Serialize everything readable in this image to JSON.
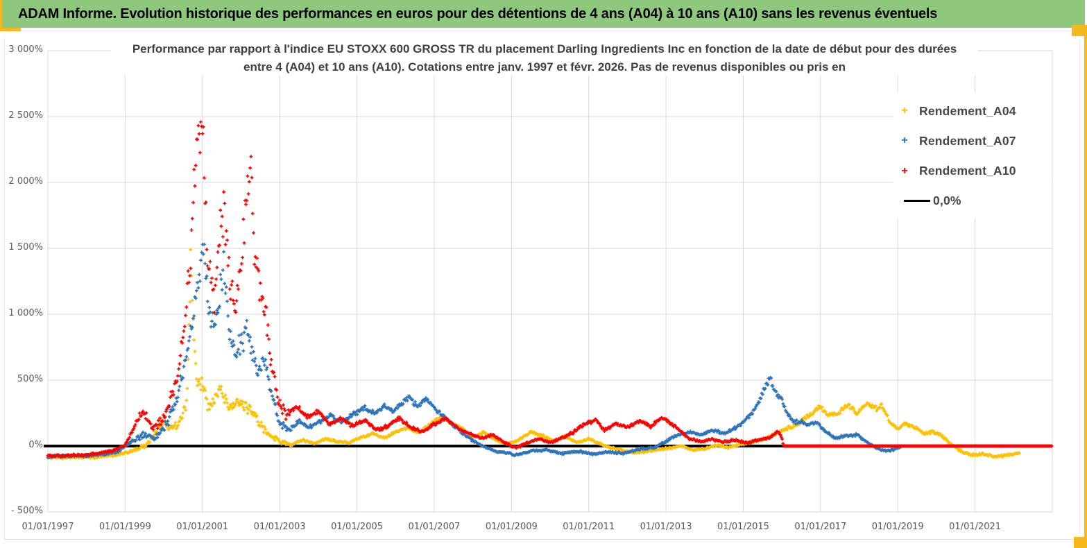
{
  "header": {
    "title": "ADAM Informe. Evolution historique des performances en euros pour des détentions de 4 ans (A04) à 10 ans (A10) sans les revenus éventuels",
    "bg_color": "#8EC87D",
    "accent_color": "#F5B91E"
  },
  "chart_data": {
    "type": "scatter",
    "title_line1": "Performance par rapport à l'indice EU STOXX 600 GROSS TR  du placement Darling Ingredients Inc en fonction de la date de début pour des durées",
    "title_line2": "entre 4 (A04) et 10 ans (A10).  Cotations entre janv. 1997 et févr. 2026. Pas de revenus disponibles ou pris en",
    "grid": true,
    "grid_color": "#D9D9D9",
    "legend_position": "upper-right",
    "x_axis": {
      "start_year": 1997,
      "end_year": 2023,
      "tick_interval_years": 2,
      "tick_labels": [
        "01/01/1997",
        "01/01/1999",
        "01/01/2001",
        "01/01/2003",
        "01/01/2005",
        "01/01/2007",
        "01/01/2009",
        "01/01/2011",
        "01/01/2013",
        "01/01/2015",
        "01/01/2017",
        "01/01/2019",
        "01/01/2021"
      ]
    },
    "y_axis": {
      "min": -500,
      "max": 3000,
      "step": 500,
      "unit": "%",
      "tick_labels": [
        "3 000%",
        "2 500%",
        "2 000%",
        "1 500%",
        "1 000%",
        "500%",
        "0%",
        "- 500%"
      ]
    },
    "zero_line": {
      "label": "0,0%",
      "value": 0,
      "color": "#000000"
    },
    "legend": [
      {
        "label": "Rendement_A04",
        "color": "#FFC000",
        "marker": "plus"
      },
      {
        "label": "Rendement_A07",
        "color": "#2D74BC",
        "marker": "plus"
      },
      {
        "label": "Rendement_A10",
        "color": "#FF0000",
        "marker": "plus"
      },
      {
        "label": "0,0%",
        "color": "#000000",
        "marker": "line"
      }
    ],
    "series": [
      {
        "name": "Rendement_A04",
        "color": "#FFC000",
        "points": [
          [
            1997.0,
            -85
          ],
          [
            1997.6,
            -86
          ],
          [
            1998.2,
            -84
          ],
          [
            1998.7,
            -72
          ],
          [
            1999.1,
            -45
          ],
          [
            1999.5,
            -5
          ],
          [
            1999.8,
            95
          ],
          [
            2000.0,
            200
          ],
          [
            2000.2,
            130
          ],
          [
            2000.45,
            195
          ],
          [
            2000.6,
            330
          ],
          [
            2000.7,
            1430
          ],
          [
            2000.78,
            900
          ],
          [
            2000.85,
            520
          ],
          [
            2001.0,
            460
          ],
          [
            2001.15,
            300
          ],
          [
            2001.3,
            360
          ],
          [
            2001.5,
            420
          ],
          [
            2001.7,
            280
          ],
          [
            2001.9,
            330
          ],
          [
            2002.1,
            300
          ],
          [
            2002.3,
            270
          ],
          [
            2002.5,
            160
          ],
          [
            2002.75,
            85
          ],
          [
            2003.0,
            30
          ],
          [
            2003.3,
            10
          ],
          [
            2003.6,
            45
          ],
          [
            2003.9,
            20
          ],
          [
            2004.2,
            55
          ],
          [
            2004.5,
            35
          ],
          [
            2004.8,
            25
          ],
          [
            2005.1,
            65
          ],
          [
            2005.4,
            95
          ],
          [
            2005.7,
            60
          ],
          [
            2006.0,
            105
          ],
          [
            2006.3,
            140
          ],
          [
            2006.6,
            100
          ],
          [
            2006.9,
            160
          ],
          [
            2007.2,
            230
          ],
          [
            2007.45,
            170
          ],
          [
            2007.7,
            140
          ],
          [
            2008.0,
            65
          ],
          [
            2008.3,
            105
          ],
          [
            2008.6,
            45
          ],
          [
            2008.9,
            15
          ],
          [
            2009.2,
            50
          ],
          [
            2009.5,
            105
          ],
          [
            2009.8,
            80
          ],
          [
            2010.1,
            35
          ],
          [
            2010.4,
            75
          ],
          [
            2010.7,
            25
          ],
          [
            2011.0,
            55
          ],
          [
            2011.3,
            15
          ],
          [
            2011.6,
            -15
          ],
          [
            2011.9,
            -35
          ],
          [
            2012.2,
            -50
          ],
          [
            2012.5,
            -40
          ],
          [
            2012.8,
            -25
          ],
          [
            2013.1,
            -15
          ],
          [
            2013.4,
            0
          ],
          [
            2013.7,
            -30
          ],
          [
            2014.0,
            -20
          ],
          [
            2014.3,
            5
          ],
          [
            2014.6,
            -10
          ],
          [
            2014.9,
            10
          ],
          [
            2015.2,
            30
          ],
          [
            2015.5,
            45
          ],
          [
            2015.8,
            90
          ],
          [
            2016.1,
            130
          ],
          [
            2016.4,
            160
          ],
          [
            2016.7,
            240
          ],
          [
            2017.0,
            295
          ],
          [
            2017.2,
            230
          ],
          [
            2017.45,
            250
          ],
          [
            2017.7,
            310
          ],
          [
            2017.95,
            250
          ],
          [
            2018.2,
            320
          ],
          [
            2018.45,
            285
          ],
          [
            2018.6,
            310
          ],
          [
            2018.8,
            180
          ],
          [
            2019.0,
            125
          ],
          [
            2019.2,
            170
          ],
          [
            2019.45,
            140
          ],
          [
            2019.7,
            95
          ],
          [
            2019.9,
            105
          ],
          [
            2020.1,
            85
          ],
          [
            2020.35,
            25
          ],
          [
            2020.6,
            -35
          ],
          [
            2020.9,
            -70
          ],
          [
            2021.2,
            -60
          ],
          [
            2021.5,
            -80
          ],
          [
            2021.8,
            -70
          ],
          [
            2022.0,
            -60
          ],
          [
            2022.15,
            -50
          ]
        ]
      },
      {
        "name": "Rendement_A07",
        "color": "#2D74BC",
        "points": [
          [
            1997.0,
            -80
          ],
          [
            1997.6,
            -76
          ],
          [
            1998.2,
            -70
          ],
          [
            1998.8,
            -45
          ],
          [
            1999.2,
            40
          ],
          [
            1999.5,
            90
          ],
          [
            1999.8,
            60
          ],
          [
            2000.1,
            180
          ],
          [
            2000.4,
            420
          ],
          [
            2000.6,
            700
          ],
          [
            2000.8,
            1050
          ],
          [
            2000.95,
            1350
          ],
          [
            2001.05,
            1510
          ],
          [
            2001.15,
            1050
          ],
          [
            2001.3,
            880
          ],
          [
            2001.45,
            1180
          ],
          [
            2001.55,
            1370
          ],
          [
            2001.7,
            900
          ],
          [
            2001.85,
            680
          ],
          [
            2002.0,
            800
          ],
          [
            2002.2,
            860
          ],
          [
            2002.4,
            560
          ],
          [
            2002.6,
            660
          ],
          [
            2002.8,
            380
          ],
          [
            2003.0,
            170
          ],
          [
            2003.25,
            120
          ],
          [
            2003.5,
            190
          ],
          [
            2003.75,
            140
          ],
          [
            2004.0,
            175
          ],
          [
            2004.3,
            235
          ],
          [
            2004.6,
            180
          ],
          [
            2004.9,
            240
          ],
          [
            2005.2,
            290
          ],
          [
            2005.45,
            250
          ],
          [
            2005.7,
            305
          ],
          [
            2005.95,
            265
          ],
          [
            2006.2,
            330
          ],
          [
            2006.35,
            375
          ],
          [
            2006.55,
            300
          ],
          [
            2006.8,
            365
          ],
          [
            2007.0,
            290
          ],
          [
            2007.3,
            210
          ],
          [
            2007.6,
            130
          ],
          [
            2007.9,
            60
          ],
          [
            2008.2,
            5
          ],
          [
            2008.5,
            -30
          ],
          [
            2008.8,
            -50
          ],
          [
            2009.1,
            -65
          ],
          [
            2009.5,
            -40
          ],
          [
            2009.9,
            -30
          ],
          [
            2010.3,
            -55
          ],
          [
            2010.7,
            -40
          ],
          [
            2011.1,
            -60
          ],
          [
            2011.5,
            -45
          ],
          [
            2011.9,
            -55
          ],
          [
            2012.3,
            -25
          ],
          [
            2012.7,
            -10
          ],
          [
            2013.0,
            35
          ],
          [
            2013.3,
            85
          ],
          [
            2013.6,
            105
          ],
          [
            2013.9,
            85
          ],
          [
            2014.2,
            120
          ],
          [
            2014.5,
            95
          ],
          [
            2014.8,
            135
          ],
          [
            2015.1,
            210
          ],
          [
            2015.35,
            300
          ],
          [
            2015.55,
            430
          ],
          [
            2015.7,
            520
          ],
          [
            2015.8,
            420
          ],
          [
            2015.95,
            380
          ],
          [
            2016.1,
            265
          ],
          [
            2016.3,
            180
          ],
          [
            2016.5,
            185
          ],
          [
            2016.7,
            160
          ],
          [
            2016.9,
            185
          ],
          [
            2017.1,
            115
          ],
          [
            2017.4,
            60
          ],
          [
            2017.7,
            80
          ],
          [
            2017.95,
            85
          ],
          [
            2018.2,
            30
          ],
          [
            2018.45,
            -15
          ],
          [
            2018.7,
            -40
          ],
          [
            2018.9,
            -25
          ],
          [
            2019.1,
            -5
          ]
        ]
      },
      {
        "name": "Rendement_A10",
        "color": "#FF0000",
        "flat_zero_from": 2016.05,
        "flat_zero_to": 2023.0,
        "points": [
          [
            1997.0,
            -75
          ],
          [
            1997.6,
            -72
          ],
          [
            1998.2,
            -62
          ],
          [
            1998.7,
            -35
          ],
          [
            1999.0,
            10
          ],
          [
            1999.2,
            120
          ],
          [
            1999.45,
            265
          ],
          [
            1999.7,
            140
          ],
          [
            1999.9,
            180
          ],
          [
            2000.1,
            290
          ],
          [
            2000.35,
            520
          ],
          [
            2000.55,
            900
          ],
          [
            2000.7,
            1500
          ],
          [
            2000.8,
            2100
          ],
          [
            2000.92,
            2430
          ],
          [
            2001.0,
            2520
          ],
          [
            2001.08,
            1900
          ],
          [
            2001.15,
            1380
          ],
          [
            2001.3,
            1100
          ],
          [
            2001.45,
            1600
          ],
          [
            2001.55,
            1850
          ],
          [
            2001.7,
            1250
          ],
          [
            2001.85,
            1020
          ],
          [
            2002.0,
            1350
          ],
          [
            2002.15,
            1950
          ],
          [
            2002.25,
            2230
          ],
          [
            2002.35,
            1500
          ],
          [
            2002.5,
            1150
          ],
          [
            2002.65,
            950
          ],
          [
            2002.8,
            600
          ],
          [
            2003.0,
            310
          ],
          [
            2003.2,
            230
          ],
          [
            2003.45,
            300
          ],
          [
            2003.7,
            220
          ],
          [
            2004.0,
            260
          ],
          [
            2004.3,
            160
          ],
          [
            2004.6,
            210
          ],
          [
            2004.9,
            150
          ],
          [
            2005.2,
            200
          ],
          [
            2005.5,
            120
          ],
          [
            2005.8,
            150
          ],
          [
            2006.1,
            210
          ],
          [
            2006.4,
            140
          ],
          [
            2006.7,
            110
          ],
          [
            2007.0,
            165
          ],
          [
            2007.3,
            210
          ],
          [
            2007.6,
            140
          ],
          [
            2007.9,
            95
          ],
          [
            2008.2,
            60
          ],
          [
            2008.5,
            85
          ],
          [
            2008.8,
            30
          ],
          [
            2009.1,
            -15
          ],
          [
            2009.4,
            20
          ],
          [
            2009.7,
            55
          ],
          [
            2010.0,
            25
          ],
          [
            2010.3,
            60
          ],
          [
            2010.6,
            105
          ],
          [
            2010.9,
            170
          ],
          [
            2011.2,
            195
          ],
          [
            2011.4,
            120
          ],
          [
            2011.7,
            170
          ],
          [
            2012.0,
            140
          ],
          [
            2012.3,
            195
          ],
          [
            2012.6,
            150
          ],
          [
            2012.9,
            215
          ],
          [
            2013.1,
            175
          ],
          [
            2013.35,
            120
          ],
          [
            2013.6,
            55
          ],
          [
            2013.9,
            35
          ],
          [
            2014.2,
            50
          ],
          [
            2014.5,
            30
          ],
          [
            2014.8,
            45
          ],
          [
            2015.1,
            25
          ],
          [
            2015.4,
            45
          ],
          [
            2015.7,
            65
          ],
          [
            2015.9,
            110
          ],
          [
            2016.0,
            60
          ],
          [
            2016.05,
            0
          ],
          [
            2023.0,
            0
          ]
        ]
      }
    ]
  }
}
